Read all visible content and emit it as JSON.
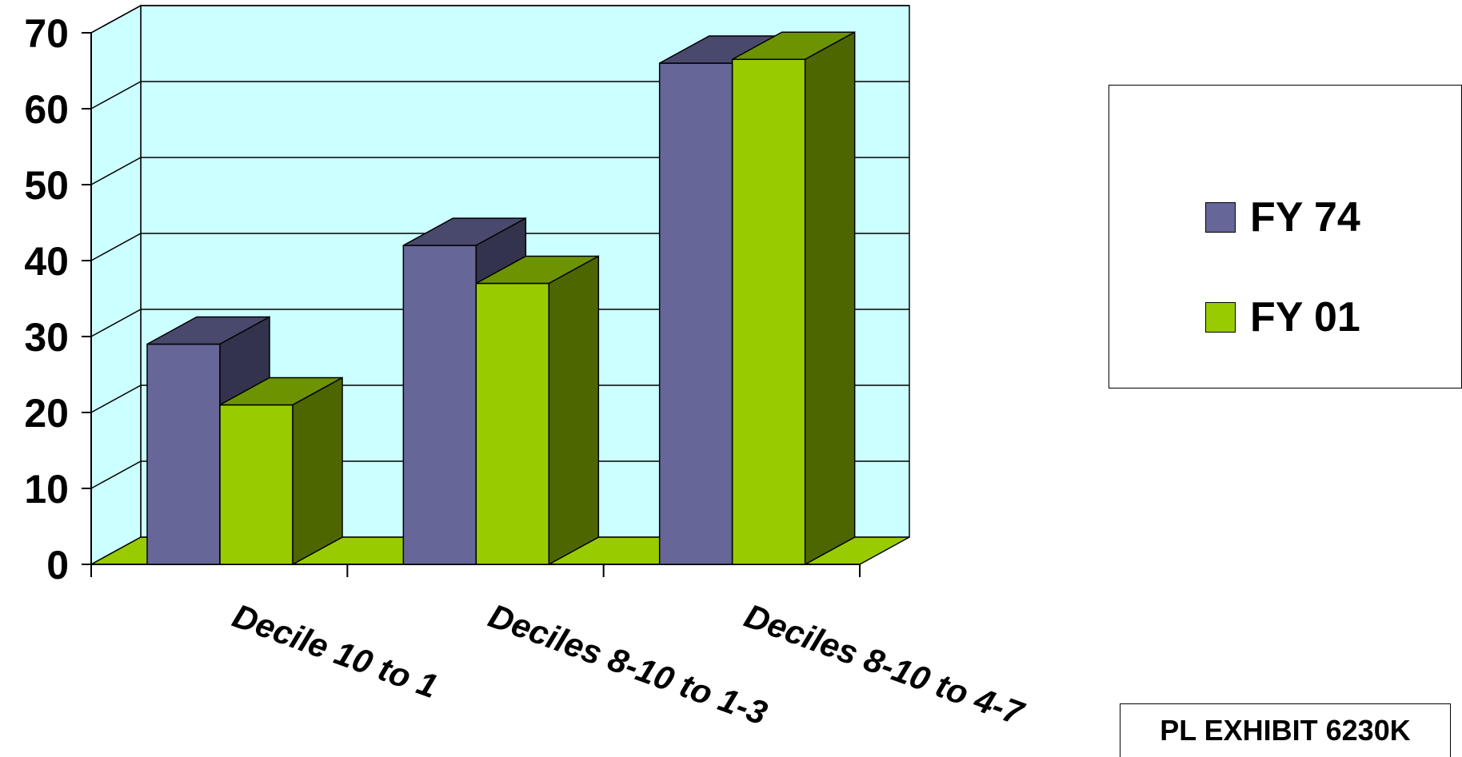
{
  "chart_data": {
    "type": "bar",
    "categories": [
      "Decile 10 to 1",
      "Deciles 8-10 to 1-3",
      "Deciles 8-10 to 4-7"
    ],
    "series": [
      {
        "name": "FY 74",
        "values": [
          29,
          42,
          66
        ],
        "color": "#666699"
      },
      {
        "name": "FY 01",
        "values": [
          21,
          37,
          66.5
        ],
        "color": "#99CC00"
      }
    ],
    "y_ticks": [
      "0",
      "10",
      "20",
      "30",
      "40",
      "50",
      "60",
      "70"
    ],
    "ylim": [
      0,
      70
    ],
    "grid": true,
    "legend_position": "right",
    "wall_color": "#CCFFFF",
    "floor_color": "#99CC00"
  },
  "legend": {
    "items": [
      {
        "label": "FY 74",
        "color": "#666699"
      },
      {
        "label": "FY 01",
        "color": "#99CC00"
      }
    ]
  },
  "exhibit_label": "PL EXHIBIT 6230K"
}
